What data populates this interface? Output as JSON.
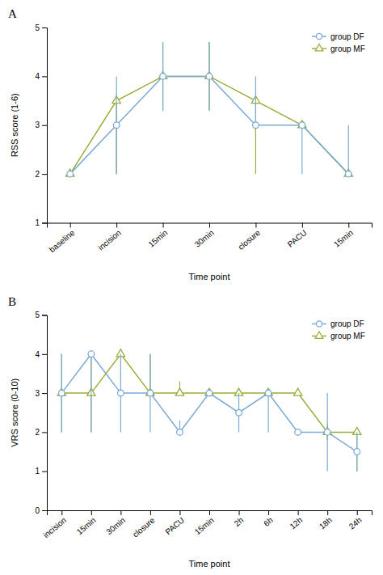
{
  "chart_data": [
    {
      "type": "line",
      "title": "A",
      "categories": [
        "baseline",
        "incision",
        "15min",
        "30min",
        "closure",
        "PACU",
        "15min"
      ],
      "series": [
        {
          "name": "group DF",
          "color": "#7baad4",
          "marker": "circle",
          "values": [
            2,
            3,
            4,
            4,
            3,
            3,
            2
          ],
          "yerr_lo": [
            0,
            1,
            0.7,
            0.7,
            0,
            1,
            0
          ],
          "yerr_hi": [
            0,
            1,
            0.7,
            0.7,
            1,
            0,
            1
          ]
        },
        {
          "name": "group MF",
          "color": "#9aac3a",
          "marker": "triangle",
          "values": [
            2,
            3.5,
            4,
            4,
            3.5,
            3,
            2
          ],
          "yerr_lo": [
            0,
            1.5,
            0.7,
            0.7,
            1.5,
            0,
            0
          ],
          "yerr_hi": [
            0,
            0,
            0.7,
            0.7,
            0,
            0,
            0
          ]
        }
      ],
      "xlabel": "Time point",
      "ylabel": "RSS score (1-6)",
      "ylim": [
        1,
        5
      ],
      "yticks": [
        1,
        2,
        3,
        4,
        5
      ],
      "legend": "upper right",
      "grid": false
    },
    {
      "type": "line",
      "title": "B",
      "categories": [
        "incision",
        "15min",
        "30min",
        "closure",
        "PACU",
        "15min",
        "2h",
        "6h",
        "12h",
        "18h",
        "24h"
      ],
      "series": [
        {
          "name": "group DF",
          "color": "#7baad4",
          "marker": "circle",
          "values": [
            3,
            4,
            3,
            3,
            2,
            3,
            2.5,
            3,
            2,
            2,
            1.5
          ],
          "yerr_lo": [
            1,
            2,
            1,
            1,
            0,
            0,
            0.5,
            1,
            0,
            1,
            0.5
          ],
          "yerr_hi": [
            1,
            0,
            1,
            1,
            0.3,
            0,
            0.5,
            0,
            0,
            1,
            0.5
          ]
        },
        {
          "name": "group MF",
          "color": "#9aac3a",
          "marker": "triangle",
          "values": [
            3,
            3,
            4,
            3,
            3,
            3,
            3,
            3,
            3,
            2,
            2
          ],
          "yerr_lo": [
            1,
            1,
            0,
            0,
            0,
            0,
            0,
            0,
            0,
            0.2,
            1
          ],
          "yerr_hi": [
            1,
            1,
            0,
            1,
            0.3,
            0,
            0,
            0,
            0,
            0.2,
            0
          ]
        }
      ],
      "xlabel": "Time point",
      "ylabel": "VRS score (0-10)",
      "ylim": [
        0,
        5
      ],
      "yticks": [
        0,
        1,
        2,
        3,
        4,
        5
      ],
      "legend": "upper right",
      "grid": false
    }
  ]
}
